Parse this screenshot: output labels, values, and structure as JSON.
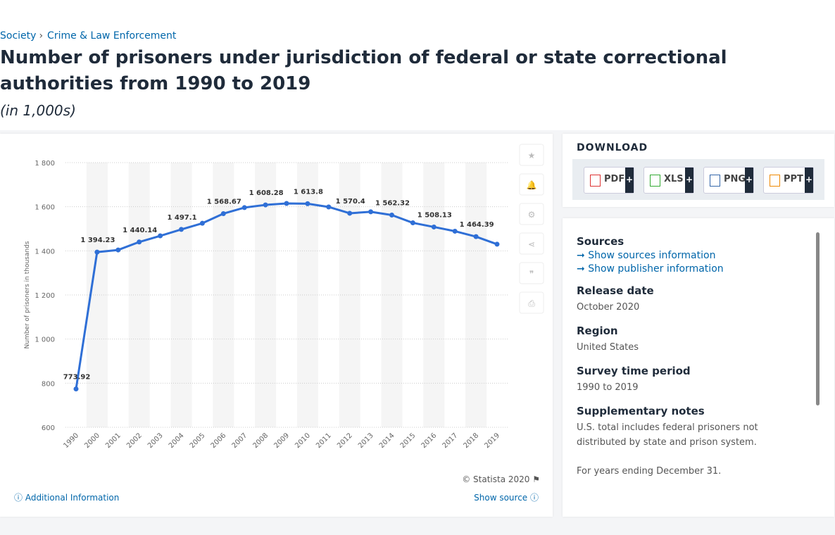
{
  "breadcrumb": [
    "Society",
    "Crime & Law Enforcement"
  ],
  "title": "Number of prisoners under jurisdiction of federal or state correctional authorities from 1990 to 2019",
  "subtitle": "(in 1,000s)",
  "chart_data": {
    "type": "line",
    "y_label": "Number of prisoners in thousands",
    "categories": [
      "1990",
      "2000",
      "2001",
      "2002",
      "2003",
      "2004",
      "2005",
      "2006",
      "2007",
      "2008",
      "2009",
      "2010",
      "2011",
      "2012",
      "2013",
      "2014",
      "2015",
      "2016",
      "2017",
      "2018",
      "2019"
    ],
    "series": [
      {
        "name": "Prisoners",
        "color": "#2f6fd6",
        "values": [
          773.92,
          1394.23,
          1404,
          1440.14,
          1468,
          1497.1,
          1525,
          1568.67,
          1596,
          1608.28,
          1615,
          1613.8,
          1599,
          1570.4,
          1577,
          1562.32,
          1527,
          1508.13,
          1489,
          1464.39,
          1430
        ],
        "value_labels": [
          "773.92",
          "1 394.23",
          null,
          "1 440.14",
          null,
          "1 497.1",
          null,
          "1 568.67",
          null,
          "1 608.28",
          null,
          "1 613.8",
          null,
          "1 570.4",
          null,
          "1 562.32",
          null,
          "1 508.13",
          null,
          "1 464.39",
          null
        ]
      }
    ],
    "ylim": [
      600,
      1800
    ],
    "yticks": [
      600,
      800,
      {
        "value": 1000,
        "label": "1 000"
      },
      {
        "value": 1200,
        "label": "1 200"
      },
      {
        "value": 1400,
        "label": "1 400"
      },
      {
        "value": 1600,
        "label": "1 600"
      },
      {
        "value": 1800,
        "label": "1 800"
      }
    ],
    "grid": true,
    "copyright": "© Statista 2020"
  },
  "footer": {
    "additional": "Additional Information",
    "source": "Show source"
  },
  "download": {
    "title": "DOWNLOAD",
    "buttons": [
      "PDF",
      "XLS",
      "PNG",
      "PPT"
    ]
  },
  "details": {
    "sources_heading": "Sources",
    "links": [
      "Show sources information",
      "Show publisher information"
    ],
    "items": [
      {
        "heading": "Release date",
        "value": "October 2020"
      },
      {
        "heading": "Region",
        "value": "United States"
      },
      {
        "heading": "Survey time period",
        "value": "1990 to 2019"
      },
      {
        "heading": "Supplementary notes",
        "value": "U.S. total includes federal prisoners not distributed by state and prison system."
      }
    ],
    "note2": "For years ending December 31."
  }
}
